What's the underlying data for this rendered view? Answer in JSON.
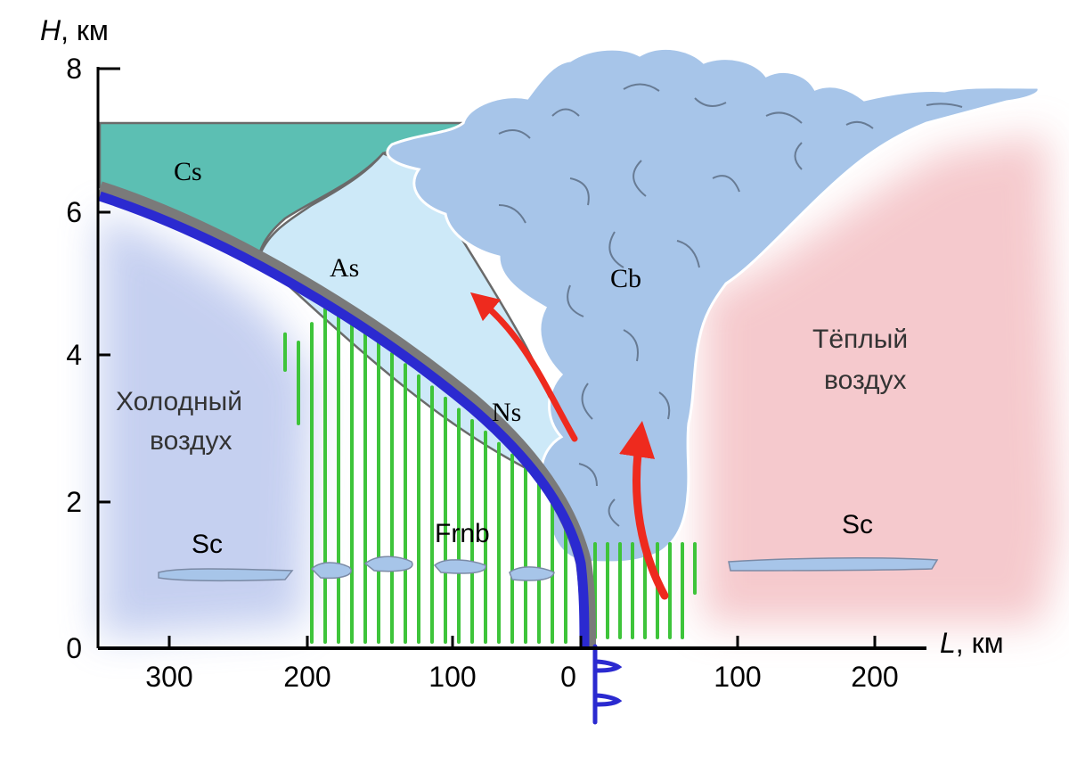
{
  "axes": {
    "y_label_var": "H",
    "y_label_unit": ", км",
    "x_label_var": "L",
    "x_label_unit": ", км",
    "y_ticks": [
      "0",
      "2",
      "4",
      "6",
      "8"
    ],
    "x_ticks": [
      "300",
      "200",
      "100",
      "0",
      "100",
      "200"
    ]
  },
  "clouds": {
    "cs": "Cs",
    "as": "As",
    "ns": "Ns",
    "cb": "Cb",
    "frnb": "Frnb",
    "sc_left": "Sc",
    "sc_right": "Sc"
  },
  "air_masses": {
    "cold_line1": "Холодный",
    "cold_line2": "воздух",
    "warm_line1": "Тёплый",
    "warm_line2": "воздух"
  },
  "colors": {
    "front": "#2b2ad0",
    "cs_fill": "#5cbfb3",
    "as_fill": "#cde9f8",
    "cb_fill": "#a7c5e9",
    "precip": "#3ec43a",
    "arrow": "#ee2a1e",
    "cold": "#bcc8ee",
    "warm": "#f4c4c8"
  }
}
